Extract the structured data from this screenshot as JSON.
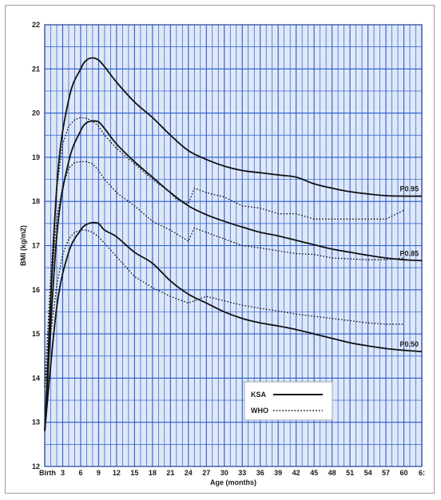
{
  "chart_data": {
    "type": "line",
    "xlabel": "Age (months)",
    "ylabel": "BMI (kg/m2)",
    "xlim": [
      0,
      63
    ],
    "ylim": [
      12,
      22
    ],
    "x_ticks": [
      {
        "x": 0,
        "label": "Birth"
      },
      {
        "x": 3,
        "label": "3"
      },
      {
        "x": 6,
        "label": "6"
      },
      {
        "x": 9,
        "label": "9"
      },
      {
        "x": 12,
        "label": "12"
      },
      {
        "x": 15,
        "label": "15"
      },
      {
        "x": 18,
        "label": "18"
      },
      {
        "x": 21,
        "label": "21"
      },
      {
        "x": 24,
        "label": "24"
      },
      {
        "x": 27,
        "label": "27"
      },
      {
        "x": 30,
        "label": "30"
      },
      {
        "x": 33,
        "label": "33"
      },
      {
        "x": 36,
        "label": "36"
      },
      {
        "x": 39,
        "label": "39"
      },
      {
        "x": 42,
        "label": "42"
      },
      {
        "x": 45,
        "label": "45"
      },
      {
        "x": 48,
        "label": "48"
      },
      {
        "x": 51,
        "label": "51"
      },
      {
        "x": 54,
        "label": "54"
      },
      {
        "x": 57,
        "label": "57"
      },
      {
        "x": 60,
        "label": "60"
      },
      {
        "x": 63,
        "label": "6:"
      }
    ],
    "y_ticks": [
      12,
      13,
      14,
      15,
      16,
      17,
      18,
      19,
      20,
      21,
      22
    ],
    "grid": true,
    "colors": {
      "grid": "#2a5bd0",
      "background": "#dfe8f7",
      "line": "#111111"
    },
    "legend": {
      "position": "bottom-right",
      "entries": [
        {
          "label": "KSA",
          "style": "solid"
        },
        {
          "label": "WHO",
          "style": "dotted"
        }
      ]
    },
    "series": [
      {
        "group": "KSA",
        "style": "solid",
        "label": "P0.95",
        "x": [
          0,
          2,
          4,
          6,
          7,
          8,
          9,
          10,
          12,
          15,
          18,
          21,
          24,
          27,
          30,
          33,
          36,
          39,
          42,
          45,
          48,
          51,
          54,
          57,
          60,
          63
        ],
        "y": [
          12.8,
          18.3,
          20.3,
          21.0,
          21.2,
          21.25,
          21.2,
          21.05,
          20.7,
          20.25,
          19.9,
          19.5,
          19.15,
          18.95,
          18.8,
          18.7,
          18.65,
          18.6,
          18.55,
          18.4,
          18.3,
          18.22,
          18.17,
          18.13,
          18.12,
          18.12
        ]
      },
      {
        "group": "KSA",
        "style": "solid",
        "label": "P0.85",
        "x": [
          0,
          2,
          4,
          6,
          7,
          8,
          9,
          10,
          12,
          15,
          18,
          21,
          24,
          27,
          30,
          33,
          36,
          39,
          42,
          45,
          48,
          51,
          54,
          57,
          60,
          63
        ],
        "y": [
          12.8,
          17.2,
          18.9,
          19.6,
          19.78,
          19.82,
          19.8,
          19.65,
          19.3,
          18.9,
          18.55,
          18.2,
          17.9,
          17.7,
          17.55,
          17.42,
          17.3,
          17.22,
          17.12,
          17.02,
          16.92,
          16.85,
          16.78,
          16.72,
          16.68,
          16.66
        ]
      },
      {
        "group": "KSA",
        "style": "solid",
        "label": "P0.50",
        "x": [
          0,
          2,
          4,
          6,
          7,
          8,
          9,
          10,
          12,
          15,
          18,
          21,
          24,
          27,
          30,
          33,
          36,
          39,
          42,
          45,
          48,
          51,
          54,
          57,
          60,
          63
        ],
        "y": [
          12.8,
          15.6,
          16.85,
          17.35,
          17.48,
          17.52,
          17.5,
          17.35,
          17.2,
          16.85,
          16.6,
          16.2,
          15.9,
          15.7,
          15.5,
          15.35,
          15.25,
          15.18,
          15.1,
          15.0,
          14.9,
          14.8,
          14.73,
          14.67,
          14.63,
          14.6
        ]
      },
      {
        "group": "WHO",
        "style": "dotted",
        "label": "",
        "x": [
          0,
          1,
          2,
          3,
          4,
          5,
          6,
          7,
          8,
          9,
          10,
          12,
          15,
          18,
          21,
          22,
          24,
          25,
          27,
          30,
          33,
          36,
          39,
          42,
          45,
          48,
          51,
          54,
          57,
          60
        ],
        "y": [
          13.8,
          16.3,
          18.3,
          19.3,
          19.7,
          19.85,
          19.9,
          19.88,
          19.82,
          19.7,
          19.5,
          19.2,
          18.85,
          18.5,
          18.2,
          18.05,
          17.95,
          18.3,
          18.2,
          18.1,
          17.9,
          17.85,
          17.72,
          17.72,
          17.6,
          17.6,
          17.6,
          17.6,
          17.6,
          17.8
        ]
      },
      {
        "group": "WHO",
        "style": "dotted",
        "label": "",
        "x": [
          0,
          1,
          2,
          3,
          4,
          5,
          6,
          7,
          8,
          9,
          10,
          12,
          15,
          18,
          21,
          24,
          25,
          27,
          30,
          33,
          36,
          39,
          42,
          45,
          48,
          51,
          54,
          57,
          60
        ],
        "y": [
          13.8,
          16.0,
          17.6,
          18.35,
          18.75,
          18.88,
          18.9,
          18.9,
          18.85,
          18.7,
          18.5,
          18.2,
          17.9,
          17.55,
          17.35,
          17.1,
          17.4,
          17.3,
          17.15,
          17.0,
          16.95,
          16.88,
          16.82,
          16.8,
          16.72,
          16.7,
          16.68,
          16.68,
          16.72
        ]
      },
      {
        "group": "WHO",
        "style": "dotted",
        "label": "",
        "x": [
          0,
          1,
          2,
          3,
          4,
          5,
          6,
          7,
          8,
          9,
          10,
          12,
          15,
          18,
          21,
          24,
          27,
          30,
          33,
          36,
          39,
          42,
          45,
          48,
          51,
          54,
          57,
          60
        ],
        "y": [
          13.8,
          15.0,
          16.1,
          16.8,
          17.15,
          17.3,
          17.35,
          17.35,
          17.3,
          17.2,
          17.05,
          16.75,
          16.3,
          16.05,
          15.85,
          15.7,
          15.85,
          15.75,
          15.65,
          15.58,
          15.52,
          15.45,
          15.4,
          15.35,
          15.3,
          15.25,
          15.22,
          15.22
        ]
      }
    ]
  }
}
